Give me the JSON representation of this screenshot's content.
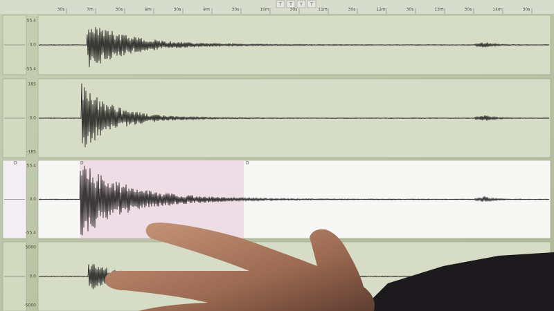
{
  "toolbar": {
    "buttons": [
      "T",
      "T",
      "Y",
      "T"
    ]
  },
  "time_axis": {
    "labels": [
      "30s",
      "7m",
      "30s",
      "8m",
      "30s",
      "9m",
      "30s",
      "10m",
      "30s",
      "11m",
      "30s",
      "12m",
      "30s",
      "13m",
      "30s",
      "14m",
      "30s"
    ]
  },
  "panels": [
    {
      "labels": [
        "55.4",
        "0.0",
        "-55.4"
      ]
    },
    {
      "labels": [
        "185",
        "0.0",
        "-185"
      ]
    },
    {
      "labels": [
        "55.4",
        "0.0",
        "-55.4"
      ],
      "markers": [
        "D",
        "D",
        "D"
      ]
    },
    {
      "labels": [
        "5000",
        "0.0",
        "-5000"
      ]
    }
  ]
}
